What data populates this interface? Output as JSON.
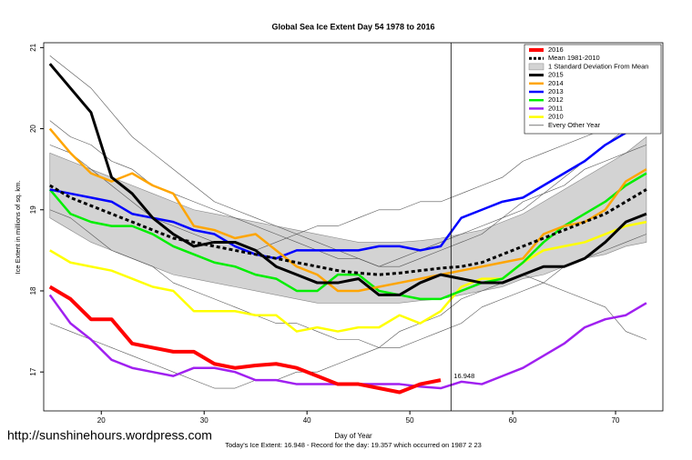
{
  "chart_data": {
    "type": "line",
    "title": "Global Sea Ice Extent Day 54 1978 to 2016",
    "x_label": "Day of Year",
    "y_label": "Ice Extent in millions of sq. km.",
    "caption": "Today's Ice Extent: 16.948  - Record for the day: 19.357 which occurred on 1987 2 23",
    "watermark": "http://sunshinehours.wordpress.com",
    "xlim": [
      14.4,
      74.6
    ],
    "ylim": [
      16.52,
      21.06
    ],
    "xticks": [
      20,
      30,
      40,
      50,
      60,
      70
    ],
    "yticks": [
      17,
      18,
      19,
      20,
      21
    ],
    "vline": 54,
    "annotation": {
      "text": "16.948",
      "x": 54,
      "y": 16.948,
      "color": "#ff3333"
    },
    "legend": "top-right",
    "x": [
      15,
      17,
      19,
      21,
      23,
      25,
      27,
      29,
      31,
      33,
      35,
      37,
      39,
      41,
      43,
      45,
      47,
      49,
      51,
      53,
      55,
      57,
      59,
      61,
      63,
      65,
      67,
      69,
      71,
      73
    ],
    "band": {
      "name": "1 Standard Deviation From Mean",
      "color": "#d3d3d3",
      "upper": [
        19.7,
        19.6,
        19.5,
        19.4,
        19.3,
        19.2,
        19.1,
        19.0,
        18.95,
        18.9,
        18.85,
        18.8,
        18.75,
        18.7,
        18.65,
        18.6,
        18.6,
        18.6,
        18.62,
        18.65,
        18.7,
        18.75,
        18.85,
        18.95,
        19.1,
        19.25,
        19.4,
        19.55,
        19.7,
        19.9
      ],
      "lower": [
        18.9,
        18.75,
        18.6,
        18.5,
        18.4,
        18.3,
        18.2,
        18.15,
        18.1,
        18.05,
        18.0,
        17.95,
        17.9,
        17.85,
        17.85,
        17.85,
        17.85,
        17.85,
        17.88,
        17.9,
        17.95,
        18.0,
        18.05,
        18.15,
        18.2,
        18.3,
        18.4,
        18.45,
        18.55,
        18.6
      ]
    },
    "others": {
      "name": "Every Other Year",
      "color": "#555555",
      "lines": [
        [
          20.9,
          20.7,
          20.5,
          20.2,
          19.9,
          19.7,
          19.5,
          19.3,
          19.1,
          19.0,
          18.9,
          18.8,
          18.7,
          18.6,
          18.5,
          18.4,
          18.3,
          18.3,
          18.4,
          18.5,
          18.6,
          18.7,
          18.9,
          19.0,
          19.2,
          19.4,
          19.6,
          19.8,
          20.0,
          20.3
        ],
        [
          20.1,
          19.9,
          19.8,
          19.6,
          19.5,
          19.3,
          19.2,
          19.1,
          19.0,
          18.9,
          18.8,
          18.7,
          18.6,
          18.5,
          18.4,
          18.4,
          18.3,
          18.4,
          18.5,
          18.6,
          18.7,
          18.8,
          18.9,
          19.1,
          19.2,
          19.3,
          19.5,
          19.6,
          19.7,
          19.8
        ],
        [
          19.0,
          18.9,
          18.7,
          18.5,
          18.4,
          18.3,
          18.1,
          18.0,
          17.9,
          17.8,
          17.7,
          17.6,
          17.6,
          17.5,
          17.4,
          17.4,
          17.3,
          17.3,
          17.4,
          17.5,
          17.6,
          17.8,
          17.9,
          18.0,
          18.1,
          18.3,
          18.4,
          18.5,
          18.6,
          18.7
        ],
        [
          17.6,
          17.5,
          17.4,
          17.3,
          17.2,
          17.1,
          17.0,
          16.9,
          16.8,
          16.8,
          16.9,
          16.9,
          17.0,
          17.0,
          17.1,
          17.2,
          17.3,
          17.5,
          17.6,
          17.7,
          17.9,
          18.0,
          18.1,
          18.2,
          18.1,
          18.0,
          17.9,
          17.8,
          17.5,
          17.4
        ],
        [
          19.8,
          19.7,
          19.5,
          19.3,
          19.1,
          18.9,
          18.8,
          18.7,
          18.6,
          18.6,
          18.5,
          18.6,
          18.7,
          18.8,
          18.8,
          18.9,
          19.0,
          19.0,
          19.1,
          19.1,
          19.2,
          19.3,
          19.4,
          19.6,
          19.7,
          19.8,
          19.9,
          20.0,
          20.1,
          20.2
        ]
      ]
    },
    "series": [
      {
        "name": "2016",
        "color": "#ff0000",
        "width": 4,
        "values": [
          18.05,
          17.9,
          17.65,
          17.65,
          17.35,
          17.3,
          17.25,
          17.25,
          17.1,
          17.05,
          17.08,
          17.1,
          17.05,
          16.95,
          16.85,
          16.85,
          16.8,
          16.75,
          16.85,
          16.9,
          null,
          null,
          null,
          null,
          null,
          null,
          null,
          null,
          null,
          null
        ]
      },
      {
        "name": "Mean 1981-2010",
        "color": "#000000",
        "width": 3,
        "dashed": true,
        "values": [
          19.3,
          19.15,
          19.05,
          18.95,
          18.85,
          18.75,
          18.65,
          18.6,
          18.55,
          18.5,
          18.45,
          18.4,
          18.35,
          18.3,
          18.25,
          18.22,
          18.2,
          18.22,
          18.25,
          18.28,
          18.3,
          18.35,
          18.45,
          18.55,
          18.65,
          18.75,
          18.85,
          18.95,
          19.1,
          19.25
        ]
      },
      {
        "name": "2015",
        "color": "#000000",
        "width": 3,
        "values": [
          20.8,
          20.5,
          20.2,
          19.4,
          19.2,
          18.9,
          18.7,
          18.55,
          18.6,
          18.6,
          18.5,
          18.3,
          18.2,
          18.1,
          18.1,
          18.15,
          17.95,
          17.95,
          18.1,
          18.2,
          18.15,
          18.1,
          18.1,
          18.2,
          18.3,
          18.3,
          18.4,
          18.6,
          18.85,
          18.95
        ]
      },
      {
        "name": "2014",
        "color": "#ffa500",
        "width": 2.5,
        "values": [
          20.0,
          19.7,
          19.45,
          19.35,
          19.45,
          19.3,
          19.2,
          18.8,
          18.75,
          18.65,
          18.7,
          18.5,
          18.3,
          18.2,
          18.0,
          18.0,
          18.05,
          18.1,
          18.15,
          18.2,
          18.25,
          18.3,
          18.35,
          18.4,
          18.7,
          18.8,
          18.85,
          19.0,
          19.35,
          19.5
        ]
      },
      {
        "name": "2013",
        "color": "#0000ff",
        "width": 2.5,
        "values": [
          19.25,
          19.2,
          19.15,
          19.1,
          18.95,
          18.9,
          18.85,
          18.75,
          18.7,
          18.55,
          18.45,
          18.4,
          18.5,
          18.5,
          18.5,
          18.5,
          18.55,
          18.55,
          18.5,
          18.55,
          18.9,
          19.0,
          19.1,
          19.15,
          19.3,
          19.45,
          19.6,
          19.8,
          19.95,
          20.15
        ]
      },
      {
        "name": "2012",
        "color": "#00ee00",
        "width": 2.5,
        "values": [
          19.25,
          18.95,
          18.85,
          18.8,
          18.8,
          18.7,
          18.55,
          18.45,
          18.35,
          18.3,
          18.2,
          18.15,
          18.0,
          18.0,
          18.2,
          18.2,
          18.0,
          17.95,
          17.9,
          17.9,
          18.0,
          18.1,
          18.15,
          18.35,
          18.6,
          18.8,
          18.95,
          19.1,
          19.3,
          19.45
        ]
      },
      {
        "name": "2011",
        "color": "#a020f0",
        "width": 2.5,
        "values": [
          17.95,
          17.6,
          17.4,
          17.15,
          17.05,
          17.0,
          16.95,
          17.05,
          17.05,
          17.0,
          16.9,
          16.9,
          16.85,
          16.85,
          16.85,
          16.85,
          16.85,
          16.85,
          16.82,
          16.8,
          16.88,
          16.85,
          16.95,
          17.05,
          17.2,
          17.35,
          17.55,
          17.65,
          17.7,
          17.85
        ]
      },
      {
        "name": "2010",
        "color": "#ffff00",
        "width": 2.5,
        "values": [
          18.5,
          18.35,
          18.3,
          18.25,
          18.15,
          18.05,
          18.0,
          17.75,
          17.75,
          17.75,
          17.7,
          17.7,
          17.5,
          17.55,
          17.5,
          17.55,
          17.55,
          17.7,
          17.6,
          17.75,
          18.05,
          18.15,
          18.15,
          18.35,
          18.5,
          18.55,
          18.6,
          18.7,
          18.8,
          18.85
        ]
      }
    ]
  }
}
